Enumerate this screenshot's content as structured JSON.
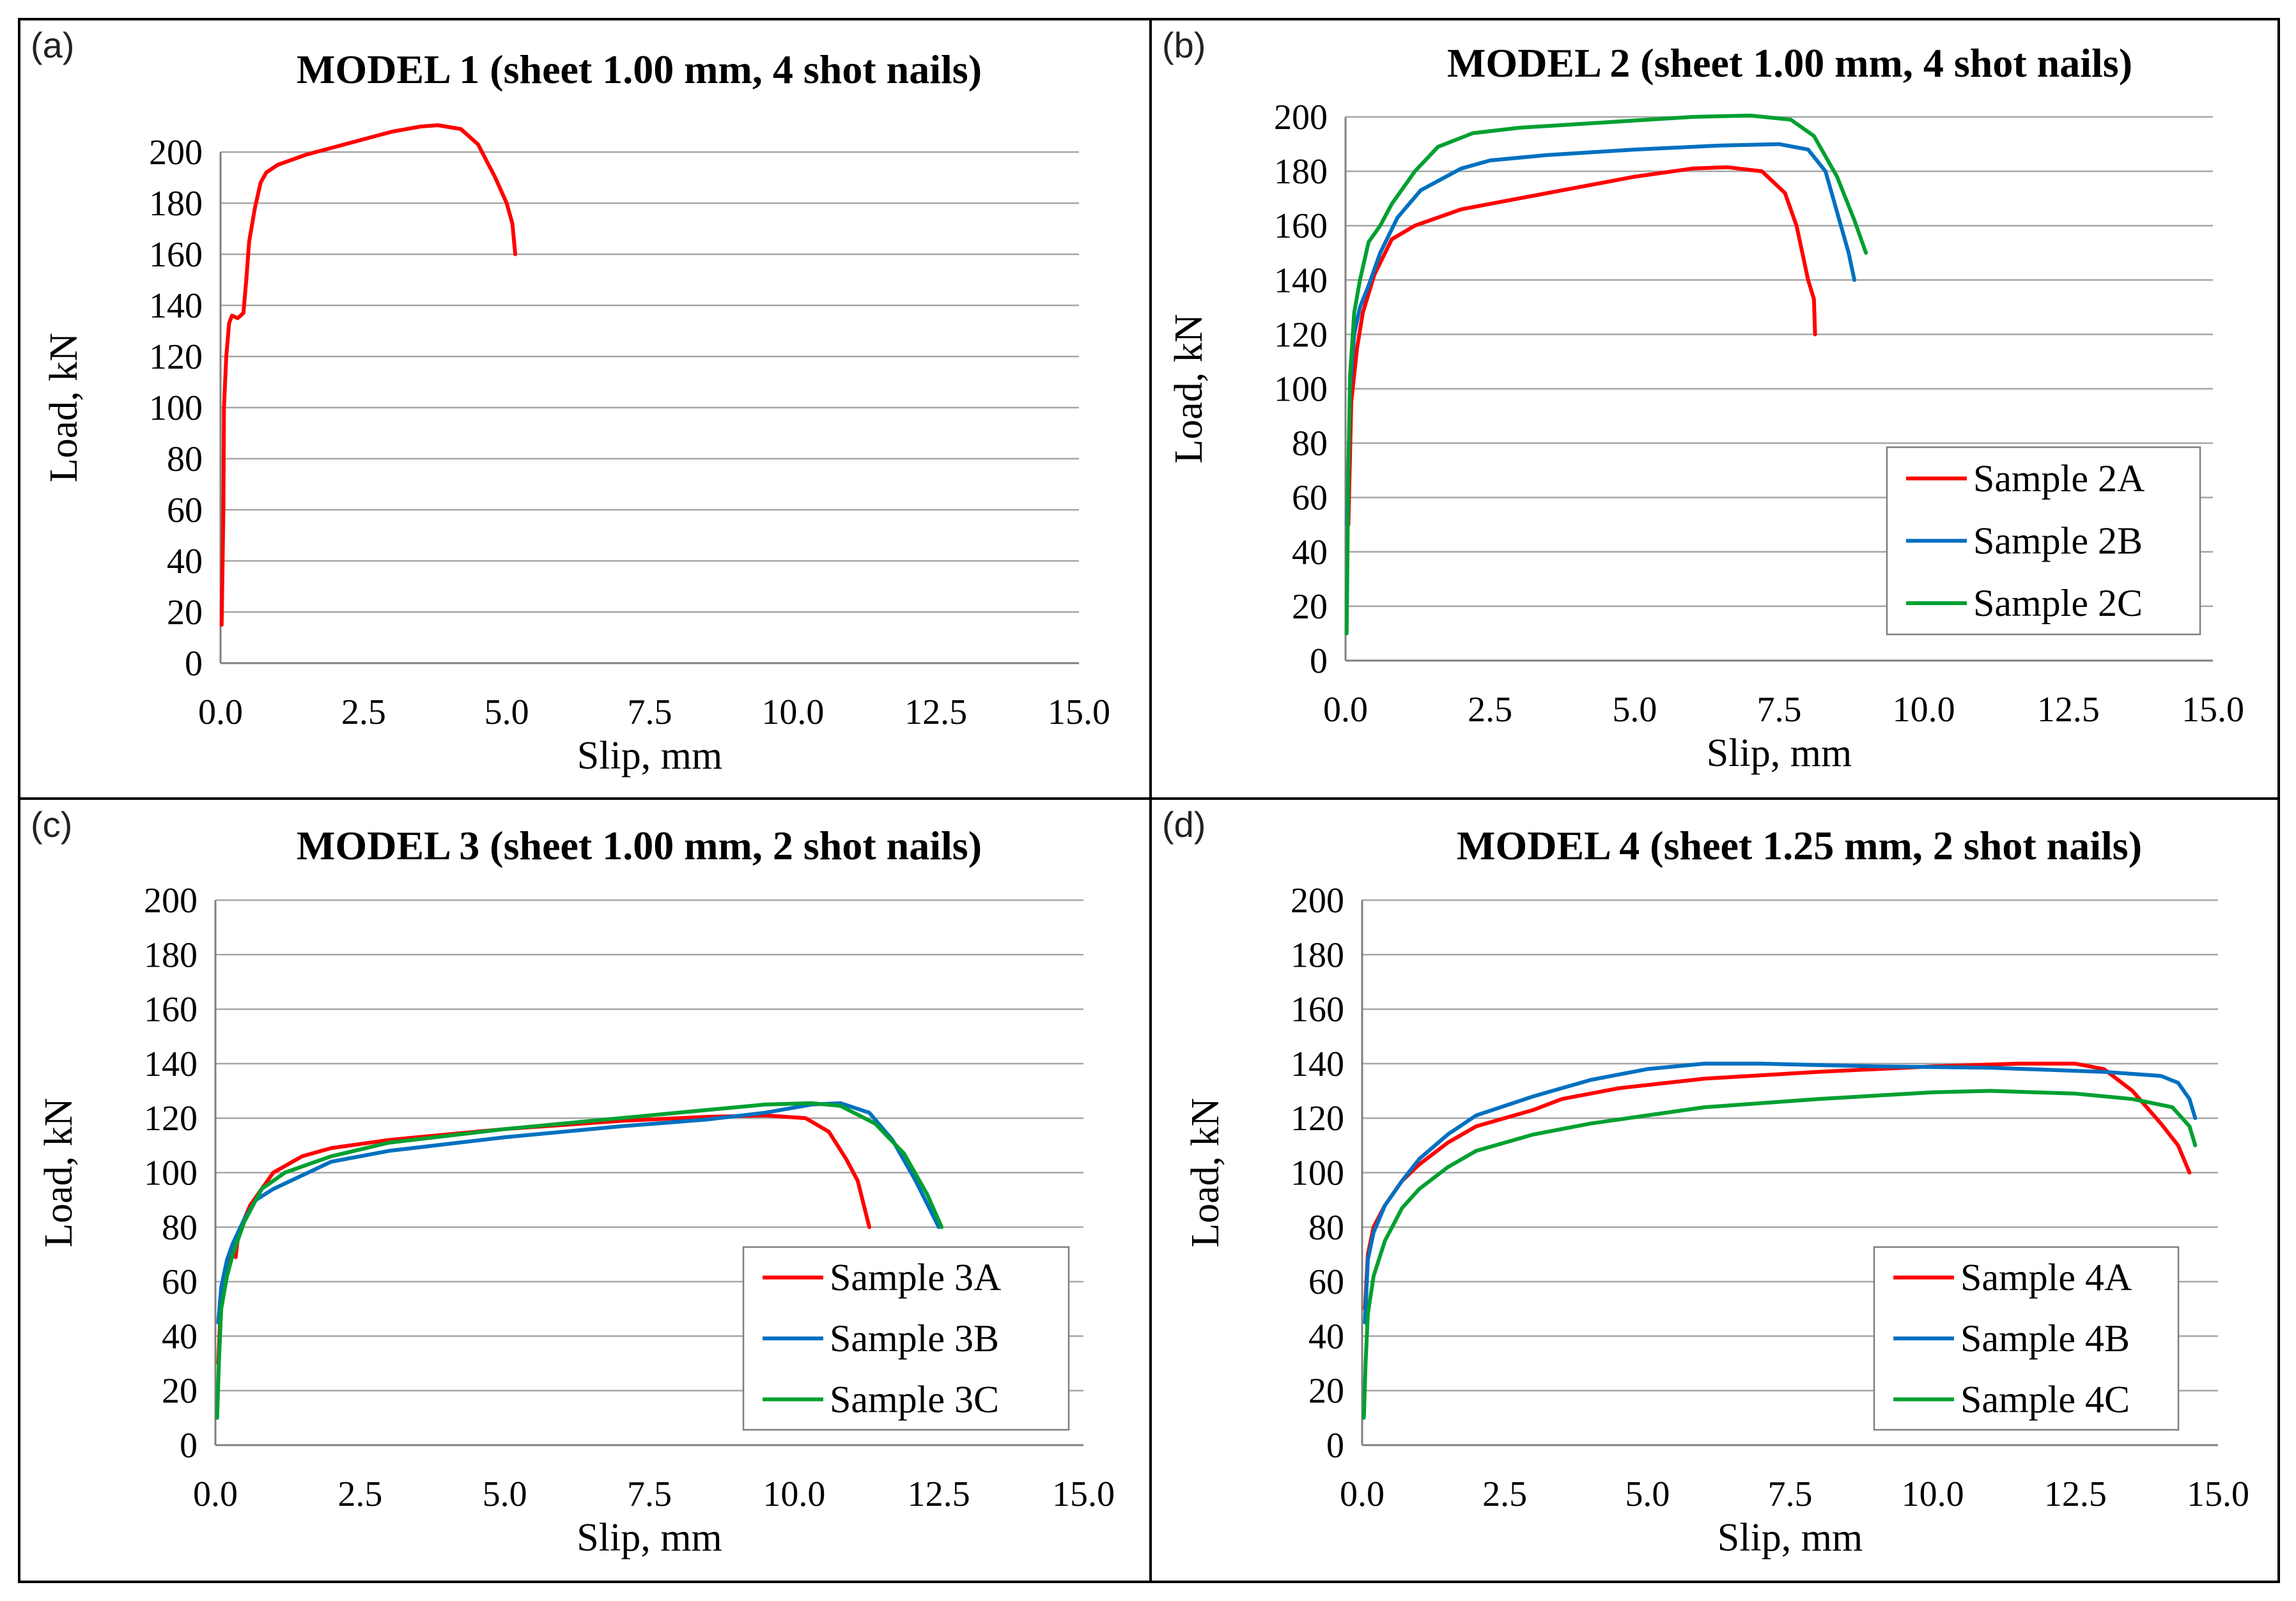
{
  "colors": {
    "red": "#ff0000",
    "blue": "#0070c0",
    "green": "#00a030"
  },
  "chart_data": [
    {
      "type": "line",
      "panel_label": "(a)",
      "title": "MODEL 1 (sheet 1.00 mm, 4 shot nails)",
      "xlabel": "Slip, mm",
      "ylabel": "Load, kN",
      "xlim": [
        0,
        15
      ],
      "ylim": [
        0,
        200
      ],
      "x_ticks": [
        "0.0",
        "2.5",
        "5.0",
        "7.5",
        "10.0",
        "12.5",
        "15.0"
      ],
      "y_ticks": [
        "0",
        "20",
        "40",
        "60",
        "80",
        "100",
        "120",
        "140",
        "160",
        "180",
        "200"
      ],
      "grid": true,
      "legend": null,
      "series": [
        {
          "name": "",
          "color": "red",
          "points": [
            [
              0.02,
              15
            ],
            [
              0.05,
              60
            ],
            [
              0.06,
              100
            ],
            [
              0.1,
              120
            ],
            [
              0.15,
              133
            ],
            [
              0.2,
              136
            ],
            [
              0.3,
              135
            ],
            [
              0.4,
              137
            ],
            [
              0.45,
              150
            ],
            [
              0.5,
              165
            ],
            [
              0.6,
              178
            ],
            [
              0.7,
              188
            ],
            [
              0.8,
              192
            ],
            [
              1.0,
              195
            ],
            [
              1.5,
              199
            ],
            [
              2.0,
              202
            ],
            [
              2.5,
              205
            ],
            [
              3.0,
              208
            ],
            [
              3.5,
              210
            ],
            [
              3.8,
              210.5
            ],
            [
              4.2,
              209
            ],
            [
              4.5,
              203
            ],
            [
              4.8,
              190
            ],
            [
              5.0,
              180
            ],
            [
              5.1,
              172
            ],
            [
              5.15,
              160
            ]
          ]
        }
      ]
    },
    {
      "type": "line",
      "panel_label": "(b)",
      "title": "MODEL 2 (sheet 1.00 mm, 4 shot nails)",
      "xlabel": "Slip, mm",
      "ylabel": "Load, kN",
      "xlim": [
        0,
        15
      ],
      "ylim": [
        0,
        200
      ],
      "x_ticks": [
        "0.0",
        "2.5",
        "5.0",
        "7.5",
        "10.0",
        "12.5",
        "15.0"
      ],
      "y_ticks": [
        "0",
        "20",
        "40",
        "60",
        "80",
        "100",
        "120",
        "140",
        "160",
        "180",
        "200"
      ],
      "grid": true,
      "legend": "right",
      "series": [
        {
          "name": "Sample 2A",
          "color": "red",
          "points": [
            [
              0.05,
              50
            ],
            [
              0.1,
              95
            ],
            [
              0.2,
              115
            ],
            [
              0.3,
              128
            ],
            [
              0.5,
              142
            ],
            [
              0.8,
              155
            ],
            [
              1.2,
              160
            ],
            [
              2.0,
              166
            ],
            [
              3.0,
              170
            ],
            [
              4.0,
              174
            ],
            [
              5.0,
              178
            ],
            [
              6.0,
              181
            ],
            [
              6.6,
              181.5
            ],
            [
              7.2,
              180
            ],
            [
              7.6,
              172
            ],
            [
              7.8,
              160
            ],
            [
              7.9,
              150
            ],
            [
              8.0,
              140
            ],
            [
              8.1,
              133
            ],
            [
              8.12,
              120
            ]
          ]
        },
        {
          "name": "Sample 2B",
          "color": "blue",
          "points": [
            [
              0.03,
              50
            ],
            [
              0.08,
              100
            ],
            [
              0.15,
              120
            ],
            [
              0.25,
              130
            ],
            [
              0.4,
              138
            ],
            [
              0.6,
              150
            ],
            [
              0.9,
              163
            ],
            [
              1.3,
              173
            ],
            [
              2.0,
              181
            ],
            [
              2.5,
              184
            ],
            [
              3.5,
              186
            ],
            [
              5.0,
              188
            ],
            [
              6.5,
              189.5
            ],
            [
              7.5,
              190
            ],
            [
              8.0,
              188
            ],
            [
              8.3,
              180
            ],
            [
              8.5,
              165
            ],
            [
              8.7,
              150
            ],
            [
              8.8,
              140
            ]
          ]
        },
        {
          "name": "Sample 2C",
          "color": "green",
          "points": [
            [
              0.02,
              10
            ],
            [
              0.05,
              70
            ],
            [
              0.08,
              105
            ],
            [
              0.15,
              128
            ],
            [
              0.25,
              140
            ],
            [
              0.4,
              154
            ],
            [
              0.6,
              160
            ],
            [
              0.8,
              168
            ],
            [
              1.2,
              180
            ],
            [
              1.6,
              189
            ],
            [
              2.2,
              194
            ],
            [
              3.0,
              196
            ],
            [
              4.5,
              198
            ],
            [
              6.0,
              200
            ],
            [
              7.0,
              200.5
            ],
            [
              7.7,
              199
            ],
            [
              8.1,
              193
            ],
            [
              8.5,
              178
            ],
            [
              8.8,
              162
            ],
            [
              9.0,
              150
            ]
          ]
        }
      ]
    },
    {
      "type": "line",
      "panel_label": "(c)",
      "title": "MODEL 3 (sheet 1.00 mm, 2 shot nails)",
      "xlabel": "Slip, mm",
      "ylabel": "Load, kN",
      "xlim": [
        0,
        15
      ],
      "ylim": [
        0,
        200
      ],
      "x_ticks": [
        "0.0",
        "2.5",
        "5.0",
        "7.5",
        "10.0",
        "12.5",
        "15.0"
      ],
      "y_ticks": [
        "0",
        "20",
        "40",
        "60",
        "80",
        "100",
        "120",
        "140",
        "160",
        "180",
        "200"
      ],
      "grid": true,
      "legend": "bottom-right",
      "series": [
        {
          "name": "Sample 3A",
          "color": "red",
          "points": [
            [
              0.05,
              30
            ],
            [
              0.1,
              55
            ],
            [
              0.2,
              66
            ],
            [
              0.3,
              70
            ],
            [
              0.35,
              69
            ],
            [
              0.4,
              78
            ],
            [
              0.6,
              88
            ],
            [
              1.0,
              100
            ],
            [
              1.5,
              106
            ],
            [
              2.0,
              109
            ],
            [
              3.0,
              112
            ],
            [
              5.0,
              116
            ],
            [
              7.0,
              119
            ],
            [
              8.5,
              120.5
            ],
            [
              9.5,
              121
            ],
            [
              10.2,
              120
            ],
            [
              10.6,
              115
            ],
            [
              10.9,
              105
            ],
            [
              11.1,
              97
            ],
            [
              11.3,
              80
            ]
          ]
        },
        {
          "name": "Sample 3B",
          "color": "blue",
          "points": [
            [
              0.05,
              45
            ],
            [
              0.1,
              58
            ],
            [
              0.2,
              68
            ],
            [
              0.3,
              74
            ],
            [
              0.5,
              83
            ],
            [
              0.7,
              90
            ],
            [
              1.0,
              94
            ],
            [
              1.5,
              99
            ],
            [
              2.0,
              104
            ],
            [
              3.0,
              108
            ],
            [
              5.0,
              113
            ],
            [
              7.0,
              117
            ],
            [
              8.5,
              119.5
            ],
            [
              9.5,
              122
            ],
            [
              10.3,
              125
            ],
            [
              10.8,
              125.5
            ],
            [
              11.3,
              122
            ],
            [
              11.7,
              112
            ],
            [
              12.1,
              97
            ],
            [
              12.5,
              80
            ]
          ]
        },
        {
          "name": "Sample 3C",
          "color": "green",
          "points": [
            [
              0.03,
              10
            ],
            [
              0.06,
              30
            ],
            [
              0.1,
              50
            ],
            [
              0.2,
              62
            ],
            [
              0.3,
              70
            ],
            [
              0.5,
              82
            ],
            [
              0.8,
              94
            ],
            [
              1.2,
              100
            ],
            [
              2.0,
              106
            ],
            [
              3.0,
              111
            ],
            [
              5.0,
              116
            ],
            [
              7.0,
              120
            ],
            [
              8.5,
              123
            ],
            [
              9.5,
              125
            ],
            [
              10.3,
              125.5
            ],
            [
              10.8,
              124.5
            ],
            [
              11.4,
              118
            ],
            [
              11.9,
              107
            ],
            [
              12.3,
              92
            ],
            [
              12.55,
              80
            ]
          ]
        }
      ]
    },
    {
      "type": "line",
      "panel_label": "(d)",
      "title": "MODEL 4 (sheet 1.25 mm, 2 shot nails)",
      "xlabel": "Slip, mm",
      "ylabel": "Load, kN",
      "xlim": [
        0,
        15
      ],
      "ylim": [
        0,
        200
      ],
      "x_ticks": [
        "0.0",
        "2.5",
        "5.0",
        "7.5",
        "10.0",
        "12.5",
        "15.0"
      ],
      "y_ticks": [
        "0",
        "20",
        "40",
        "60",
        "80",
        "100",
        "120",
        "140",
        "160",
        "180",
        "200"
      ],
      "grid": true,
      "legend": "bottom-right",
      "series": [
        {
          "name": "Sample 4A",
          "color": "red",
          "points": [
            [
              0.05,
              50
            ],
            [
              0.1,
              70
            ],
            [
              0.2,
              80
            ],
            [
              0.4,
              88
            ],
            [
              0.7,
              97
            ],
            [
              1.0,
              103
            ],
            [
              1.5,
              111
            ],
            [
              2.0,
              117
            ],
            [
              3.0,
              123
            ],
            [
              3.5,
              127
            ],
            [
              4.5,
              131
            ],
            [
              6.0,
              134.5
            ],
            [
              8.0,
              137
            ],
            [
              10.0,
              139
            ],
            [
              11.5,
              140
            ],
            [
              12.5,
              140
            ],
            [
              13.0,
              138
            ],
            [
              13.5,
              130
            ],
            [
              14.0,
              118
            ],
            [
              14.3,
              110
            ],
            [
              14.5,
              100
            ]
          ]
        },
        {
          "name": "Sample 4B",
          "color": "blue",
          "points": [
            [
              0.05,
              45
            ],
            [
              0.1,
              68
            ],
            [
              0.2,
              78
            ],
            [
              0.4,
              88
            ],
            [
              0.7,
              97
            ],
            [
              1.0,
              105
            ],
            [
              1.5,
              114
            ],
            [
              2.0,
              121
            ],
            [
              3.0,
              128
            ],
            [
              4.0,
              134
            ],
            [
              5.0,
              138
            ],
            [
              6.0,
              140
            ],
            [
              7.0,
              140
            ],
            [
              9.0,
              139
            ],
            [
              11.0,
              138.5
            ],
            [
              13.0,
              137
            ],
            [
              14.0,
              135.5
            ],
            [
              14.3,
              133
            ],
            [
              14.5,
              127
            ],
            [
              14.6,
              120
            ]
          ]
        },
        {
          "name": "Sample 4C",
          "color": "green",
          "points": [
            [
              0.03,
              10
            ],
            [
              0.06,
              30
            ],
            [
              0.1,
              48
            ],
            [
              0.2,
              62
            ],
            [
              0.4,
              75
            ],
            [
              0.7,
              87
            ],
            [
              1.0,
              94
            ],
            [
              1.5,
              102
            ],
            [
              2.0,
              108
            ],
            [
              3.0,
              114
            ],
            [
              4.0,
              118
            ],
            [
              5.0,
              121
            ],
            [
              6.0,
              124
            ],
            [
              8.0,
              127
            ],
            [
              10.0,
              129.5
            ],
            [
              11.0,
              130
            ],
            [
              12.5,
              129
            ],
            [
              13.5,
              127
            ],
            [
              14.2,
              124
            ],
            [
              14.5,
              117
            ],
            [
              14.6,
              110
            ]
          ]
        }
      ]
    }
  ]
}
